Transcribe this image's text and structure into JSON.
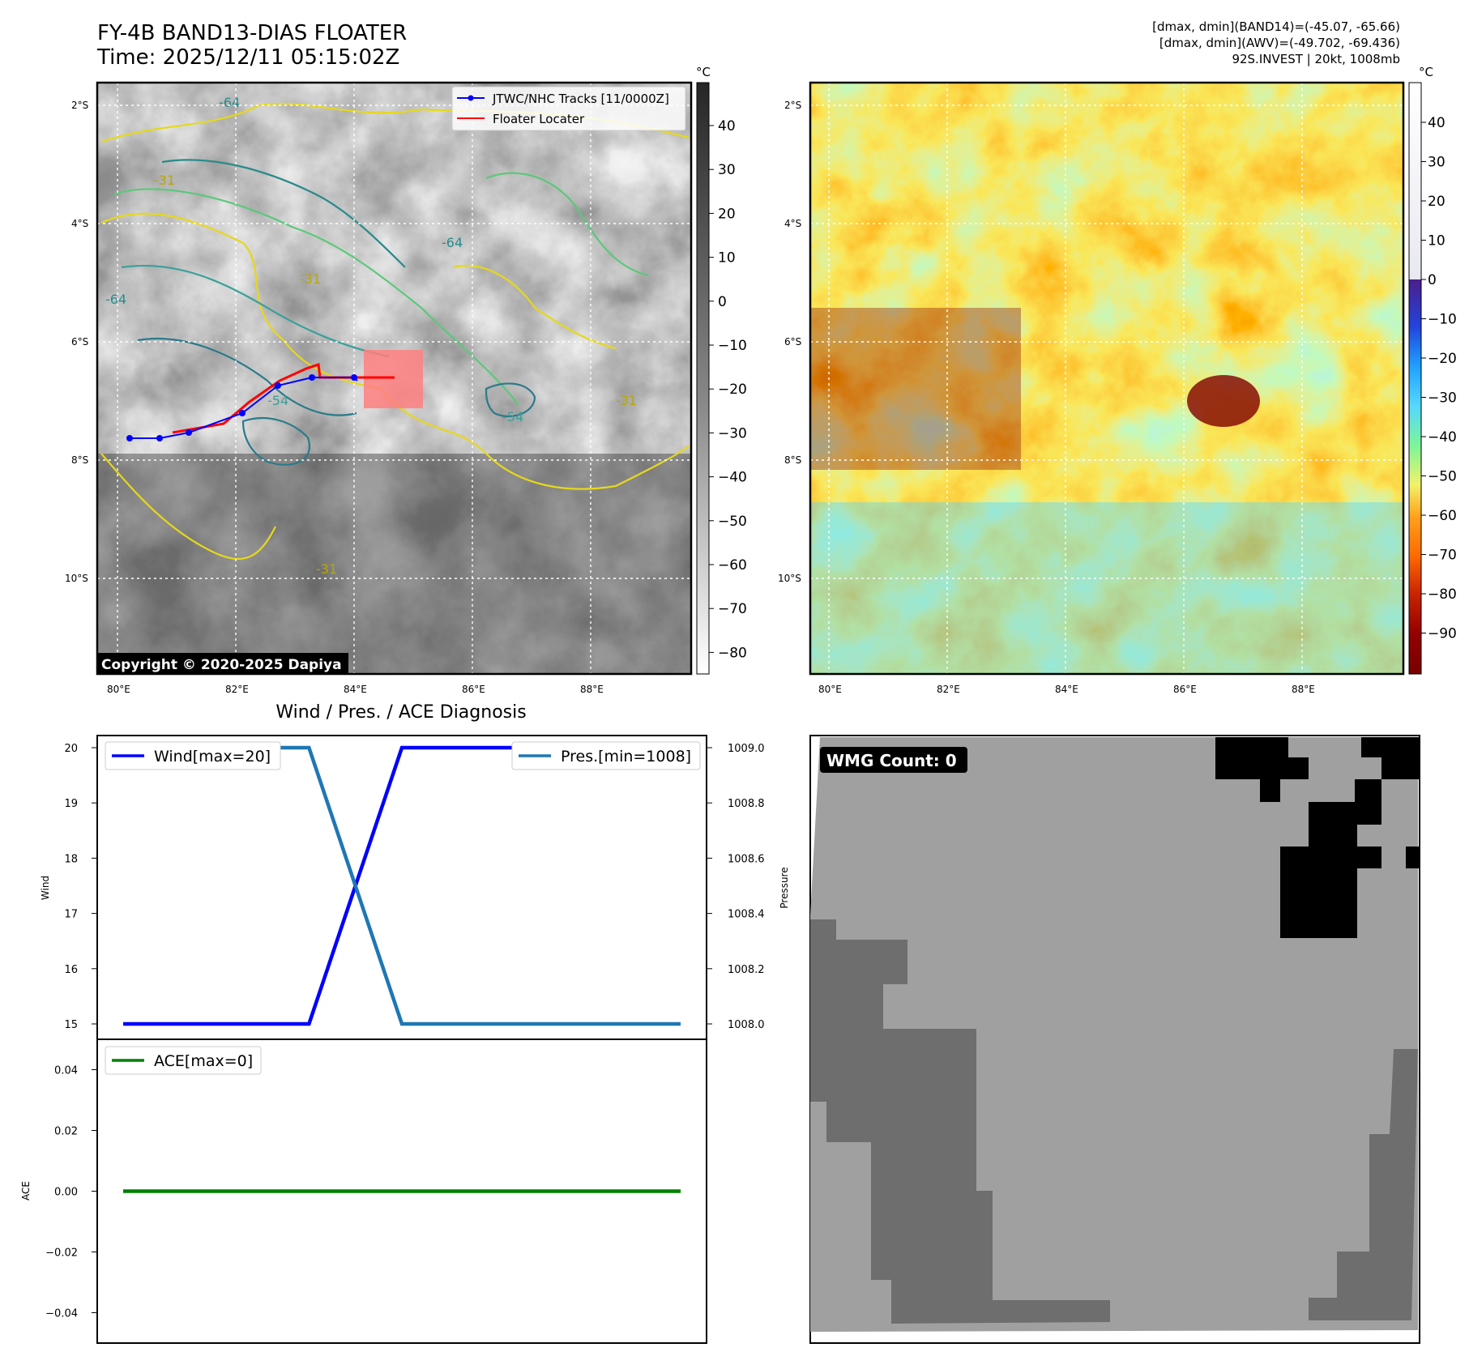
{
  "header": {
    "title": "FY-4B BAND13-DIAS FLOATER",
    "time": "Time: 2025/12/11 05:15:02Z",
    "info_line1": "[dmax, dmin](BAND14)=(-45.07, -65.66)",
    "info_line2": "[dmax, dmin](AWV)=(-49.702, -69.436)",
    "info_line3": "92S.INVEST | 20kt, 1008mb"
  },
  "map": {
    "lon_ticks": [
      "80°E",
      "82°E",
      "84°E",
      "86°E",
      "88°E"
    ],
    "lat_ticks": [
      "2°S",
      "4°S",
      "6°S",
      "8°S",
      "10°S"
    ],
    "contour_labels": [
      "-31",
      "-54",
      "-64"
    ],
    "legend_tracks": "JTWC/NHC Tracks [11/0000Z]",
    "legend_floater": "Floater Locater",
    "copyright": "Copyright © 2020-2025 Dapiya",
    "colorbar_unit": "°C",
    "colorbar1_ticks": [
      "40",
      "30",
      "20",
      "10",
      "0",
      "−10",
      "−20",
      "−30",
      "−40",
      "−50",
      "−60",
      "−70",
      "−80"
    ],
    "colorbar2_ticks": [
      "40",
      "30",
      "20",
      "10",
      "0",
      "−10",
      "−20",
      "−30",
      "−40",
      "−50",
      "−60",
      "−70",
      "−80",
      "−90"
    ],
    "track_color": "#0000ff",
    "floater_color": "#ff0000"
  },
  "chart_data": [
    {
      "type": "line",
      "title": "Wind / Pres. / ACE Diagnosis",
      "ylabel": "Wind",
      "ylabel_right": "Pressure",
      "ylim": [
        15,
        20
      ],
      "ylim_right": [
        1008.0,
        1009.0
      ],
      "yticks": [
        "20",
        "19",
        "18",
        "17",
        "16",
        "15"
      ],
      "yticks_right": [
        "1009.0",
        "1008.8",
        "1008.6",
        "1008.4",
        "1008.2",
        "1008.0"
      ],
      "x": [
        0,
        1,
        2,
        3,
        4,
        5,
        6
      ],
      "series": [
        {
          "name": "Wind[max=20]",
          "color": "#0000ff",
          "axis": "left",
          "values": [
            15,
            15,
            15,
            20,
            20,
            20,
            20
          ]
        },
        {
          "name": "Pres.[min=1008]",
          "color": "#1f77b4",
          "axis": "right",
          "values": [
            1009.0,
            1009.0,
            1009.0,
            1008.0,
            1008.0,
            1008.0,
            1008.0
          ]
        }
      ]
    },
    {
      "type": "line",
      "ylabel": "ACE",
      "ylim": [
        -0.05,
        0.05
      ],
      "yticks": [
        "0.04",
        "0.02",
        "0.00",
        "−0.02",
        "−0.04"
      ],
      "x": [
        0,
        1,
        2,
        3,
        4,
        5,
        6
      ],
      "series": [
        {
          "name": "ACE[max=0]",
          "color": "#008000",
          "values": [
            0,
            0,
            0,
            0,
            0,
            0,
            0
          ]
        }
      ]
    }
  ],
  "wmg": {
    "count_label": "WMG Count: 0"
  }
}
